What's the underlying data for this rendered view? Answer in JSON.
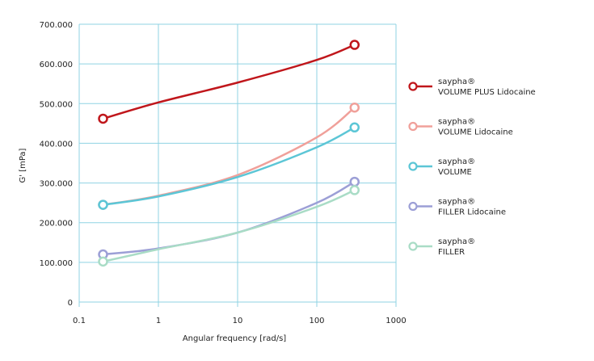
{
  "chart_data": {
    "type": "line",
    "title": "",
    "xlabel": "Angular frequency [rad/s]",
    "ylabel": "G' [mPa]",
    "xscale": "log",
    "xlim": [
      0.1,
      1000
    ],
    "ylim": [
      0,
      700000
    ],
    "x_ticks": [
      "0.1",
      "1",
      "10",
      "100",
      "1000"
    ],
    "y_ticks": [
      "0",
      "100.000",
      "200.000",
      "300.000",
      "400.000",
      "500.000",
      "600.000",
      "700.000"
    ],
    "grid": true,
    "legend_position": "right",
    "x": [
      0.2,
      1,
      10,
      100,
      300
    ],
    "series": [
      {
        "brand": "saypha®",
        "name": "VOLUME PLUS Lidocaine",
        "color": "#c0161b",
        "values": [
          462000,
          503000,
          553000,
          610000,
          648000
        ]
      },
      {
        "brand": "saypha®",
        "name": "VOLUME Lidocaine",
        "color": "#f0a09a",
        "values": [
          245000,
          268000,
          320000,
          415000,
          490000
        ]
      },
      {
        "brand": "saypha®",
        "name": "VOLUME",
        "color": "#5cc6d6",
        "values": [
          245000,
          266000,
          315000,
          390000,
          440000
        ]
      },
      {
        "brand": "saypha®",
        "name": "FILLER Lidocaine",
        "color": "#9c9fd6",
        "values": [
          120000,
          135000,
          175000,
          250000,
          303000
        ]
      },
      {
        "brand": "saypha®",
        "name": "FILLER",
        "color": "#a9dcc6",
        "values": [
          102000,
          133000,
          175000,
          240000,
          282000
        ]
      }
    ],
    "grid_color": "#8fd3e3"
  }
}
